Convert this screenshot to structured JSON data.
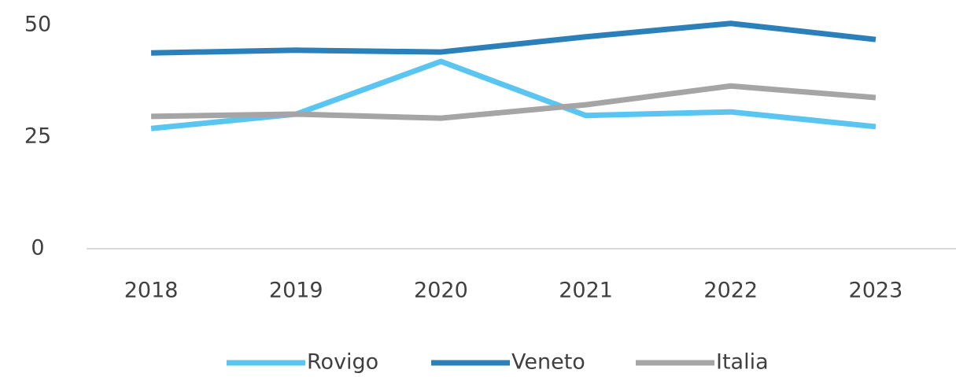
{
  "chart_data": {
    "type": "line",
    "x": [
      "2018",
      "2019",
      "2020",
      "2021",
      "2022",
      "2023"
    ],
    "series": [
      {
        "name": "Rovigo",
        "color": "#5bc5f2",
        "values": [
          26.9,
          30.1,
          41.9,
          29.8,
          30.6,
          27.3
        ]
      },
      {
        "name": "Veneto",
        "color": "#2b80b9",
        "values": [
          43.8,
          44.4,
          44.0,
          47.4,
          50.4,
          46.8
        ]
      },
      {
        "name": "Italia",
        "color": "#a5a5a5",
        "values": [
          29.6,
          30.1,
          29.2,
          32.2,
          36.4,
          33.8
        ]
      }
    ],
    "ylim": [
      0,
      50
    ],
    "yticks": [
      0,
      25,
      50
    ],
    "grid": false,
    "legend": "bottom"
  }
}
